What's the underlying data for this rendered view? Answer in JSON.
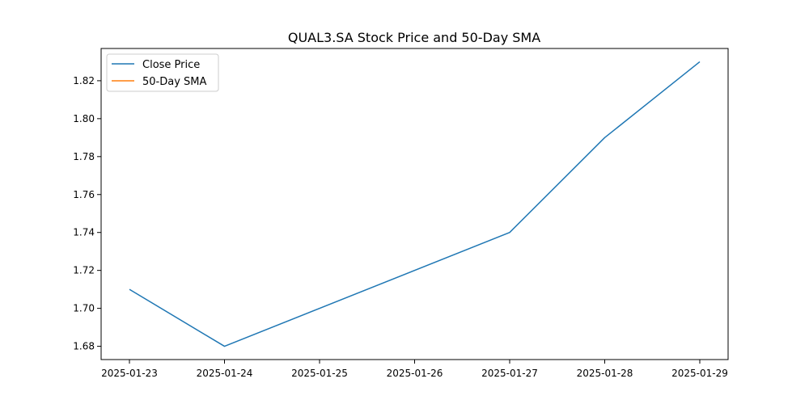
{
  "chart_data": {
    "type": "line",
    "title": "QUAL3.SA Stock Price and 50-Day SMA",
    "xlabel": "",
    "ylabel": "",
    "x": [
      "2025-01-23",
      "2025-01-24",
      "2025-01-25",
      "2025-01-26",
      "2025-01-27",
      "2025-01-28",
      "2025-01-29"
    ],
    "x_ticks": [
      "2025-01-23",
      "2025-01-24",
      "2025-01-25",
      "2025-01-26",
      "2025-01-27",
      "2025-01-28",
      "2025-01-29"
    ],
    "y_ticks": [
      "1.68",
      "1.70",
      "1.72",
      "1.74",
      "1.76",
      "1.78",
      "1.80",
      "1.82"
    ],
    "ylim": [
      1.673,
      1.837
    ],
    "grid": false,
    "legend_position": "top-left",
    "series": [
      {
        "name": "Close Price",
        "color": "#1f77b4",
        "points": [
          {
            "x": "2025-01-23",
            "y": 1.71
          },
          {
            "x": "2025-01-24",
            "y": 1.68
          },
          {
            "x": "2025-01-27",
            "y": 1.74
          },
          {
            "x": "2025-01-28",
            "y": 1.79
          },
          {
            "x": "2025-01-29",
            "y": 1.83
          }
        ]
      },
      {
        "name": "50-Day SMA",
        "color": "#ff7f0e",
        "points": []
      }
    ]
  }
}
